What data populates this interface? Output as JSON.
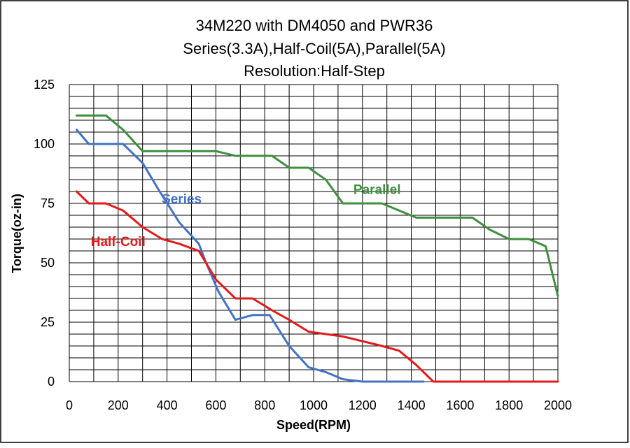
{
  "chart_data": {
    "type": "line",
    "title_lines": [
      "34M220 with DM4050 and PWR36",
      "Series(3.3A),Half-Coil(5A),Parallel(5A)",
      "Resolution:Half-Step"
    ],
    "xlabel": "Speed(RPM)",
    "ylabel": "Torque(oz-in)",
    "xlim": [
      0,
      2000
    ],
    "ylim": [
      0,
      125
    ],
    "xticks": [
      0,
      200,
      400,
      600,
      800,
      1000,
      1200,
      1400,
      1600,
      1800,
      2000
    ],
    "yticks": [
      0,
      25,
      50,
      75,
      100,
      125
    ],
    "grid": true,
    "legend": "none",
    "series": [
      {
        "name": "Series",
        "color": "#4472c4",
        "label_at": [
          460,
          75
        ],
        "points": [
          [
            30,
            106
          ],
          [
            80,
            100
          ],
          [
            150,
            100
          ],
          [
            220,
            100
          ],
          [
            300,
            92
          ],
          [
            370,
            80
          ],
          [
            450,
            67
          ],
          [
            530,
            58
          ],
          [
            560,
            50
          ],
          [
            610,
            38
          ],
          [
            680,
            26
          ],
          [
            750,
            28
          ],
          [
            820,
            28
          ],
          [
            900,
            15
          ],
          [
            980,
            6
          ],
          [
            1050,
            4
          ],
          [
            1120,
            1
          ],
          [
            1200,
            0
          ],
          [
            1300,
            0
          ],
          [
            1400,
            0
          ],
          [
            1450,
            0
          ]
        ]
      },
      {
        "name": "Half-Coil",
        "color": "#e31a1c",
        "label_at": [
          200,
          57
        ],
        "points": [
          [
            30,
            80
          ],
          [
            80,
            75
          ],
          [
            150,
            75
          ],
          [
            220,
            72
          ],
          [
            300,
            65
          ],
          [
            380,
            60
          ],
          [
            450,
            58
          ],
          [
            530,
            55
          ],
          [
            600,
            43
          ],
          [
            680,
            35
          ],
          [
            750,
            35
          ],
          [
            830,
            30
          ],
          [
            900,
            26
          ],
          [
            980,
            21
          ],
          [
            1050,
            20
          ],
          [
            1120,
            19
          ],
          [
            1200,
            17
          ],
          [
            1280,
            15
          ],
          [
            1350,
            13
          ],
          [
            1420,
            7
          ],
          [
            1490,
            0
          ],
          [
            1600,
            0
          ],
          [
            1800,
            0
          ],
          [
            2000,
            0
          ]
        ]
      },
      {
        "name": "Parallel",
        "color": "#3f8f3f",
        "label_at": [
          1260,
          79
        ],
        "points": [
          [
            30,
            112
          ],
          [
            80,
            112
          ],
          [
            150,
            112
          ],
          [
            220,
            106
          ],
          [
            300,
            97
          ],
          [
            380,
            97
          ],
          [
            450,
            97
          ],
          [
            530,
            97
          ],
          [
            600,
            97
          ],
          [
            680,
            95
          ],
          [
            750,
            95
          ],
          [
            830,
            95
          ],
          [
            900,
            90
          ],
          [
            980,
            90
          ],
          [
            1050,
            85
          ],
          [
            1120,
            75
          ],
          [
            1200,
            75
          ],
          [
            1280,
            75
          ],
          [
            1350,
            72
          ],
          [
            1420,
            69
          ],
          [
            1500,
            69
          ],
          [
            1580,
            69
          ],
          [
            1650,
            69
          ],
          [
            1720,
            64
          ],
          [
            1800,
            60
          ],
          [
            1880,
            60
          ],
          [
            1950,
            57
          ],
          [
            2000,
            36
          ]
        ]
      }
    ]
  }
}
